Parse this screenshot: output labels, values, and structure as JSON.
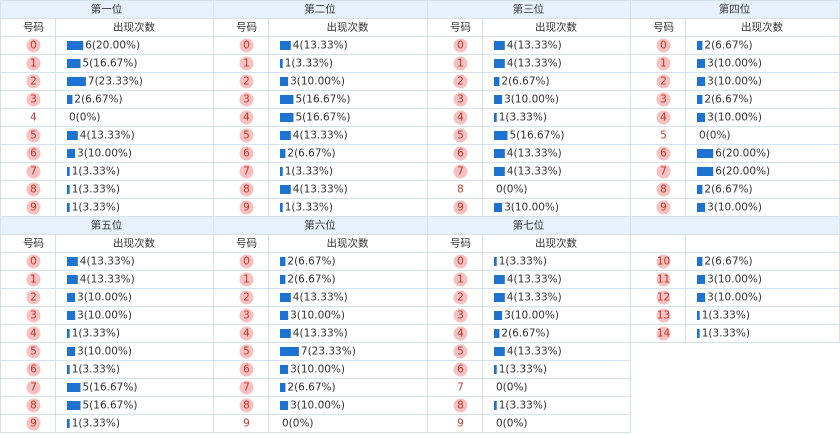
{
  "panels": [
    {
      "title": "第一位",
      "headers": [
        "号码",
        "出现次数"
      ],
      "rows": [
        {
          "number": "0",
          "count": 6,
          "label": "6(20.00%)"
        },
        {
          "number": "1",
          "count": 5,
          "label": "5(16.67%)"
        },
        {
          "number": "2",
          "count": 7,
          "label": "7(23.33%)"
        },
        {
          "number": "3",
          "count": 2,
          "label": "2(6.67%)"
        },
        {
          "number": "4",
          "count": 0,
          "label": "0(0%)"
        },
        {
          "number": "5",
          "count": 4,
          "label": "4(13.33%)"
        },
        {
          "number": "6",
          "count": 3,
          "label": "3(10.00%)"
        },
        {
          "number": "7",
          "count": 1,
          "label": "1(3.33%)"
        },
        {
          "number": "8",
          "count": 1,
          "label": "1(3.33%)"
        },
        {
          "number": "9",
          "count": 1,
          "label": "1(3.33%)"
        }
      ]
    },
    {
      "title": "第二位",
      "headers": [
        "号码",
        "出现次数"
      ],
      "rows": [
        {
          "number": "0",
          "count": 4,
          "label": "4(13.33%)"
        },
        {
          "number": "1",
          "count": 1,
          "label": "1(3.33%)"
        },
        {
          "number": "2",
          "count": 3,
          "label": "3(10.00%)"
        },
        {
          "number": "3",
          "count": 5,
          "label": "5(16.67%)"
        },
        {
          "number": "4",
          "count": 5,
          "label": "5(16.67%)"
        },
        {
          "number": "5",
          "count": 4,
          "label": "4(13.33%)"
        },
        {
          "number": "6",
          "count": 2,
          "label": "2(6.67%)"
        },
        {
          "number": "7",
          "count": 1,
          "label": "1(3.33%)"
        },
        {
          "number": "8",
          "count": 4,
          "label": "4(13.33%)"
        },
        {
          "number": "9",
          "count": 1,
          "label": "1(3.33%)"
        }
      ]
    },
    {
      "title": "第三位",
      "headers": [
        "号码",
        "出现次数"
      ],
      "rows": [
        {
          "number": "0",
          "count": 4,
          "label": "4(13.33%)"
        },
        {
          "number": "1",
          "count": 4,
          "label": "4(13.33%)"
        },
        {
          "number": "2",
          "count": 2,
          "label": "2(6.67%)"
        },
        {
          "number": "3",
          "count": 3,
          "label": "3(10.00%)"
        },
        {
          "number": "4",
          "count": 1,
          "label": "1(3.33%)"
        },
        {
          "number": "5",
          "count": 5,
          "label": "5(16.67%)"
        },
        {
          "number": "6",
          "count": 4,
          "label": "4(13.33%)"
        },
        {
          "number": "7",
          "count": 4,
          "label": "4(13.33%)"
        },
        {
          "number": "8",
          "count": 0,
          "label": "0(0%)"
        },
        {
          "number": "9",
          "count": 3,
          "label": "3(10.00%)"
        }
      ]
    },
    {
      "title": "第四位",
      "headers": [
        "号码",
        "出现次数"
      ],
      "rows": [
        {
          "number": "0",
          "count": 2,
          "label": "2(6.67%)"
        },
        {
          "number": "1",
          "count": 3,
          "label": "3(10.00%)"
        },
        {
          "number": "2",
          "count": 3,
          "label": "3(10.00%)"
        },
        {
          "number": "3",
          "count": 2,
          "label": "2(6.67%)"
        },
        {
          "number": "4",
          "count": 3,
          "label": "3(10.00%)"
        },
        {
          "number": "5",
          "count": 0,
          "label": "0(0%)"
        },
        {
          "number": "6",
          "count": 6,
          "label": "6(20.00%)"
        },
        {
          "number": "7",
          "count": 6,
          "label": "6(20.00%)"
        },
        {
          "number": "8",
          "count": 2,
          "label": "2(6.67%)"
        },
        {
          "number": "9",
          "count": 3,
          "label": "3(10.00%)"
        }
      ]
    },
    {
      "title": "第五位",
      "headers": [
        "号码",
        "出现次数"
      ],
      "rows": [
        {
          "number": "0",
          "count": 4,
          "label": "4(13.33%)"
        },
        {
          "number": "1",
          "count": 4,
          "label": "4(13.33%)"
        },
        {
          "number": "2",
          "count": 3,
          "label": "3(10.00%)"
        },
        {
          "number": "3",
          "count": 3,
          "label": "3(10.00%)"
        },
        {
          "number": "4",
          "count": 1,
          "label": "1(3.33%)"
        },
        {
          "number": "5",
          "count": 3,
          "label": "3(10.00%)"
        },
        {
          "number": "6",
          "count": 1,
          "label": "1(3.33%)"
        },
        {
          "number": "7",
          "count": 5,
          "label": "5(16.67%)"
        },
        {
          "number": "8",
          "count": 5,
          "label": "5(16.67%)"
        },
        {
          "number": "9",
          "count": 1,
          "label": "1(3.33%)"
        }
      ]
    },
    {
      "title": "第六位",
      "headers": [
        "号码",
        "出现次数"
      ],
      "rows": [
        {
          "number": "0",
          "count": 2,
          "label": "2(6.67%)"
        },
        {
          "number": "1",
          "count": 2,
          "label": "2(6.67%)"
        },
        {
          "number": "2",
          "count": 4,
          "label": "4(13.33%)"
        },
        {
          "number": "3",
          "count": 3,
          "label": "3(10.00%)"
        },
        {
          "number": "4",
          "count": 4,
          "label": "4(13.33%)"
        },
        {
          "number": "5",
          "count": 7,
          "label": "7(23.33%)"
        },
        {
          "number": "6",
          "count": 3,
          "label": "3(10.00%)"
        },
        {
          "number": "7",
          "count": 2,
          "label": "2(6.67%)"
        },
        {
          "number": "8",
          "count": 3,
          "label": "3(10.00%)"
        },
        {
          "number": "9",
          "count": 0,
          "label": "0(0%)"
        }
      ]
    },
    {
      "title": "第七位",
      "headers": [
        "号码",
        "出现次数"
      ],
      "rows": [
        {
          "number": "0",
          "count": 1,
          "label": "1(3.33%)"
        },
        {
          "number": "1",
          "count": 4,
          "label": "4(13.33%)"
        },
        {
          "number": "2",
          "count": 4,
          "label": "4(13.33%)"
        },
        {
          "number": "3",
          "count": 3,
          "label": "3(10.00%)"
        },
        {
          "number": "4",
          "count": 2,
          "label": "2(6.67%)"
        },
        {
          "number": "5",
          "count": 4,
          "label": "4(13.33%)"
        },
        {
          "number": "6",
          "count": 1,
          "label": "1(3.33%)"
        },
        {
          "number": "7",
          "count": 0,
          "label": "0(0%)"
        },
        {
          "number": "8",
          "count": 1,
          "label": "1(3.33%)"
        },
        {
          "number": "9",
          "count": 0,
          "label": "0(0%)"
        },
        {
          "number": "10",
          "count": 2,
          "label": "2(6.67%)"
        },
        {
          "number": "11",
          "count": 3,
          "label": "3(10.00%)"
        },
        {
          "number": "12",
          "count": 3,
          "label": "3(10.00%)"
        },
        {
          "number": "13",
          "count": 1,
          "label": "1(3.33%)"
        },
        {
          "number": "14",
          "count": 1,
          "label": "1(3.33%)"
        }
      ]
    }
  ]
}
